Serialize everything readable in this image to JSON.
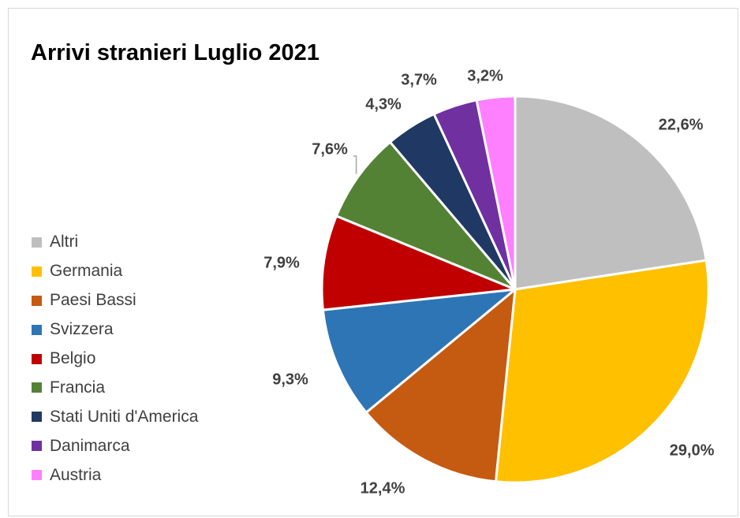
{
  "chart_data": {
    "type": "pie",
    "title": "Arrivi stranieri Luglio 2021",
    "legend_position": "left",
    "start_angle_deg": 0,
    "direction": "clockwise",
    "slices": [
      {
        "name": "Altri",
        "value": 22.6,
        "label": "22,6%",
        "color": "#bfbfbf"
      },
      {
        "name": "Germania",
        "value": 29.0,
        "label": "29,0%",
        "color": "#ffc000"
      },
      {
        "name": "Paesi Bassi",
        "value": 12.4,
        "label": "12,4%",
        "color": "#c55a11"
      },
      {
        "name": "Svizzera",
        "value": 9.3,
        "label": "9,3%",
        "color": "#2e75b6"
      },
      {
        "name": "Belgio",
        "value": 7.9,
        "label": "7,9%",
        "color": "#c00000"
      },
      {
        "name": "Francia",
        "value": 7.6,
        "label": "7,6%",
        "color": "#548235"
      },
      {
        "name": "Stati Uniti d'America",
        "value": 4.3,
        "label": "4,3%",
        "color": "#203864"
      },
      {
        "name": "Danimarca",
        "value": 3.7,
        "label": "3,7%",
        "color": "#7030a0"
      },
      {
        "name": "Austria",
        "value": 3.2,
        "label": "3,2%",
        "color": "#ff80ff"
      }
    ]
  }
}
